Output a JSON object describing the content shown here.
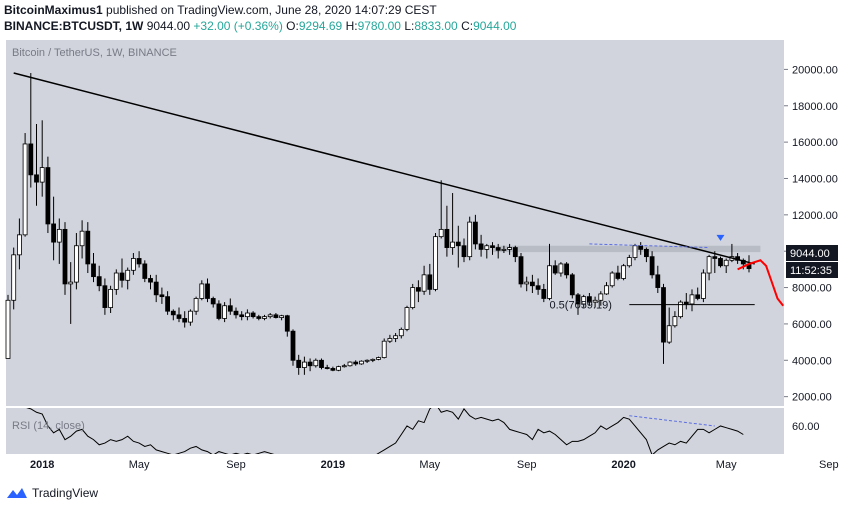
{
  "header": {
    "author": "BitcoinMaximus1",
    "published_text": "published on TradingView.com, June 28, 2020 14:07:29 CEST",
    "symbol": "BINANCE:BTCUSDT, 1W",
    "last": "9044.00",
    "change": "+32.00 (+0.36%)",
    "o_label": "O:",
    "o": "9294.69",
    "h_label": "H:",
    "h": "9780.00",
    "l_label": "L:",
    "l": "8833.00",
    "c_label": "C:",
    "c": "9044.00"
  },
  "branding": {
    "name": "TradingView",
    "logo_icon": "tradingview-logo-icon"
  },
  "colors": {
    "background": "#d1d4dc",
    "candle_up": "#ffffff",
    "candle_down": "#000000",
    "trendline": "#000000",
    "resistance_zone": "#b2b5be",
    "projection": "#ff0000",
    "marker": "#2962ff",
    "rsi_line": "#000000",
    "divergence": "#5b6ee1"
  },
  "chart_data": [
    {
      "type": "candlestick",
      "title": "Bitcoin / TetherUS, 1W, BINANCE",
      "x_ticks": [
        "2018",
        "May",
        "Sep",
        "2019",
        "May",
        "Sep",
        "2020",
        "May",
        "Sep"
      ],
      "y_ticks": [
        "20000.00",
        "18000.00",
        "16000.00",
        "14000.00",
        "12000.00",
        "10000.00",
        "8000.00",
        "6000.00",
        "4000.00",
        "2000.00"
      ],
      "ylim": [
        0,
        21000
      ],
      "ohlc": [
        [
          4100,
          7600,
          4100,
          7300
        ],
        [
          7300,
          10200,
          6800,
          9800
        ],
        [
          9800,
          11800,
          9000,
          10900
        ],
        [
          10900,
          16500,
          10800,
          15900
        ],
        [
          15900,
          19800,
          13500,
          14200
        ],
        [
          14200,
          17000,
          12500,
          13800
        ],
        [
          13800,
          17200,
          13000,
          14600
        ],
        [
          14600,
          15200,
          11000,
          11500
        ],
        [
          11500,
          13000,
          9500,
          10500
        ],
        [
          10500,
          11800,
          9300,
          11200
        ],
        [
          11200,
          11600,
          7600,
          8200
        ],
        [
          8200,
          9400,
          6000,
          8300
        ],
        [
          8300,
          11000,
          7900,
          10300
        ],
        [
          10300,
          11700,
          9600,
          11100
        ],
        [
          11100,
          11600,
          8800,
          9300
        ],
        [
          9300,
          9900,
          8300,
          8600
        ],
        [
          8600,
          9200,
          7800,
          8100
        ],
        [
          8100,
          8500,
          6500,
          6900
        ],
        [
          6900,
          8100,
          6600,
          7900
        ],
        [
          7900,
          9000,
          7600,
          8800
        ],
        [
          8800,
          9600,
          8000,
          8400
        ],
        [
          8400,
          9100,
          7900,
          8950
        ],
        [
          8950,
          9900,
          8700,
          9600
        ],
        [
          9600,
          10000,
          9100,
          9300
        ],
        [
          9300,
          9500,
          8300,
          8500
        ],
        [
          8500,
          8700,
          7900,
          8300
        ],
        [
          8300,
          8700,
          7200,
          7600
        ],
        [
          7600,
          8000,
          7100,
          7500
        ],
        [
          7500,
          7800,
          6500,
          6700
        ],
        [
          6700,
          6800,
          6200,
          6500
        ],
        [
          6500,
          6900,
          6100,
          6300
        ],
        [
          6300,
          6700,
          5800,
          6100
        ],
        [
          6100,
          6800,
          5900,
          6700
        ],
        [
          6700,
          7500,
          6500,
          7400
        ],
        [
          7400,
          8400,
          7300,
          8200
        ],
        [
          8200,
          8500,
          7200,
          7400
        ],
        [
          7400,
          7500,
          6900,
          7100
        ],
        [
          7100,
          7300,
          6200,
          6300
        ],
        [
          6300,
          7200,
          6100,
          7000
        ],
        [
          7000,
          7400,
          6500,
          6700
        ],
        [
          6700,
          6900,
          6300,
          6500
        ],
        [
          6500,
          6700,
          6200,
          6400
        ],
        [
          6400,
          6800,
          6200,
          6600
        ],
        [
          6600,
          6700,
          6300,
          6400
        ],
        [
          6400,
          6500,
          6200,
          6300
        ],
        [
          6300,
          6500,
          6200,
          6400
        ],
        [
          6400,
          6600,
          6300,
          6500
        ],
        [
          6500,
          6600,
          6300,
          6350
        ],
        [
          6350,
          6500,
          6200,
          6450
        ],
        [
          6450,
          6500,
          5300,
          5600
        ],
        [
          5600,
          5700,
          3700,
          4000
        ],
        [
          4000,
          4300,
          3200,
          3600
        ],
        [
          3600,
          4200,
          3200,
          3900
        ],
        [
          3900,
          4100,
          3400,
          3700
        ],
        [
          3700,
          4100,
          3600,
          4000
        ],
        [
          4000,
          4100,
          3500,
          3600
        ],
        [
          3600,
          3750,
          3500,
          3550
        ],
        [
          3550,
          3650,
          3400,
          3450
        ],
        [
          3450,
          3700,
          3400,
          3650
        ],
        [
          3650,
          3800,
          3600,
          3700
        ],
        [
          3700,
          3950,
          3650,
          3900
        ],
        [
          3900,
          4000,
          3700,
          3800
        ],
        [
          3800,
          4000,
          3750,
          3950
        ],
        [
          3950,
          4050,
          3850,
          4000
        ],
        [
          4000,
          4100,
          3900,
          4050
        ],
        [
          4050,
          4200,
          4000,
          4150
        ],
        [
          4150,
          5200,
          4100,
          5050
        ],
        [
          5050,
          5400,
          4950,
          5200
        ],
        [
          5200,
          5500,
          5000,
          5350
        ],
        [
          5350,
          5800,
          5200,
          5700
        ],
        [
          5700,
          7000,
          5600,
          6900
        ],
        [
          6900,
          8200,
          6800,
          8000
        ],
        [
          8000,
          8400,
          7200,
          7800
        ],
        [
          7800,
          9200,
          7600,
          8700
        ],
        [
          8700,
          9300,
          7600,
          7900
        ],
        [
          7900,
          11000,
          7800,
          10800
        ],
        [
          10800,
          13900,
          10700,
          11200
        ],
        [
          11200,
          12500,
          9700,
          10200
        ],
        [
          10200,
          13200,
          9800,
          10500
        ],
        [
          10500,
          11400,
          9100,
          10300
        ],
        [
          10300,
          10700,
          9400,
          9700
        ],
        [
          9700,
          11900,
          9500,
          11600
        ],
        [
          11600,
          12000,
          10100,
          10400
        ],
        [
          10400,
          10900,
          9700,
          10100
        ],
        [
          10100,
          10400,
          9600,
          10300
        ],
        [
          10300,
          10500,
          9800,
          10200
        ],
        [
          10200,
          10400,
          9600,
          10050
        ],
        [
          10050,
          10300,
          9900,
          10100
        ],
        [
          10100,
          10400,
          9800,
          10200
        ],
        [
          10200,
          10300,
          9400,
          9700
        ],
        [
          9700,
          9900,
          8000,
          8200
        ],
        [
          8200,
          8600,
          7800,
          8300
        ],
        [
          8300,
          8700,
          7700,
          8100
        ],
        [
          8100,
          8500,
          7600,
          7900
        ],
        [
          7900,
          8200,
          7200,
          7400
        ],
        [
          7400,
          10400,
          7300,
          9200
        ],
        [
          9200,
          9500,
          8700,
          8800
        ],
        [
          8800,
          9400,
          8600,
          9300
        ],
        [
          9300,
          9400,
          8500,
          8700
        ],
        [
          8700,
          8800,
          7400,
          7600
        ],
        [
          7600,
          7700,
          6500,
          7100
        ],
        [
          7100,
          7600,
          6900,
          7500
        ],
        [
          7500,
          7700,
          7000,
          7200
        ],
        [
          7200,
          7500,
          6900,
          7300
        ],
        [
          7300,
          7800,
          7000,
          7650
        ],
        [
          7650,
          8300,
          7600,
          8100
        ],
        [
          8100,
          8900,
          8000,
          8800
        ],
        [
          8800,
          9200,
          8400,
          8500
        ],
        [
          8500,
          9300,
          8400,
          9200
        ],
        [
          9200,
          9800,
          9100,
          9650
        ],
        [
          9650,
          10400,
          9500,
          10300
        ],
        [
          10300,
          10500,
          9800,
          10100
        ],
        [
          10100,
          10200,
          9400,
          9700
        ],
        [
          9700,
          10000,
          8500,
          8700
        ],
        [
          8700,
          9200,
          7700,
          8000
        ],
        [
          8000,
          8200,
          3800,
          5000
        ],
        [
          5000,
          6900,
          4900,
          5900
        ],
        [
          5900,
          6700,
          5800,
          6400
        ],
        [
          6400,
          7300,
          6300,
          7200
        ],
        [
          7200,
          7700,
          6800,
          7100
        ],
        [
          7100,
          7900,
          6700,
          7600
        ],
        [
          7600,
          8000,
          7300,
          7400
        ],
        [
          7400,
          9000,
          7200,
          8800
        ],
        [
          8800,
          9800,
          8400,
          9700
        ],
        [
          9700,
          10000,
          8800,
          9600
        ],
        [
          9600,
          9700,
          9100,
          9200
        ],
        [
          9200,
          9600,
          8800,
          9500
        ],
        [
          9500,
          10400,
          9400,
          9700
        ],
        [
          9700,
          9900,
          9300,
          9500
        ],
        [
          9500,
          9600,
          9000,
          9300
        ],
        [
          9294.69,
          9780,
          8833,
          9044
        ]
      ],
      "annotations": {
        "fib_label": "0.5(7059.19)",
        "fib_level": 7059.19,
        "resistance_zone": [
          9950,
          10300
        ],
        "trendline": {
          "from": [
            1,
            19800
          ],
          "to": [
            131,
            9300
          ]
        },
        "projection_path": [
          [
            128,
            9000
          ],
          [
            130,
            9300
          ],
          [
            132,
            9500
          ],
          [
            133,
            9200
          ],
          [
            134,
            8300
          ],
          [
            135,
            7400
          ],
          [
            136,
            7000
          ]
        ],
        "top_marker_price": 10900,
        "top_marker_index": 125,
        "last_price_label": "9044.00",
        "countdown_label": "11:52:35"
      }
    },
    {
      "type": "line",
      "title": "RSI (14, close)",
      "y_ticks": [
        "60.00"
      ],
      "ylim": [
        30,
        90
      ],
      "series": [
        {
          "values": [
            72,
            74,
            73,
            71,
            70,
            68,
            67,
            60,
            56,
            58,
            52,
            54,
            57,
            58,
            54,
            52,
            49,
            50,
            52,
            51,
            52,
            54,
            51,
            50,
            48,
            49,
            46,
            45,
            44,
            43,
            44,
            45,
            47,
            48,
            46,
            45,
            43,
            45,
            44,
            43,
            44,
            43,
            44,
            43,
            44,
            45,
            44,
            43,
            40,
            33,
            30,
            34,
            33,
            34,
            35,
            34,
            34,
            35,
            35,
            36,
            37,
            38,
            39,
            40,
            42,
            44,
            46,
            48,
            50,
            55,
            60,
            58,
            63,
            62,
            70,
            73,
            68,
            69,
            68,
            64,
            70,
            66,
            64,
            65,
            64,
            63,
            64,
            62,
            58,
            57,
            56,
            55,
            52,
            58,
            56,
            57,
            55,
            52,
            49,
            51,
            51,
            52,
            54,
            56,
            60,
            58,
            60,
            62,
            65,
            64,
            60,
            56,
            52,
            43,
            46,
            48,
            50,
            49,
            51,
            50,
            54,
            58,
            58,
            56,
            58,
            60,
            59,
            58,
            57,
            55
          ]
        }
      ],
      "divergence": {
        "from": [
          109,
          66
        ],
        "to": [
          124,
          60
        ]
      }
    }
  ]
}
